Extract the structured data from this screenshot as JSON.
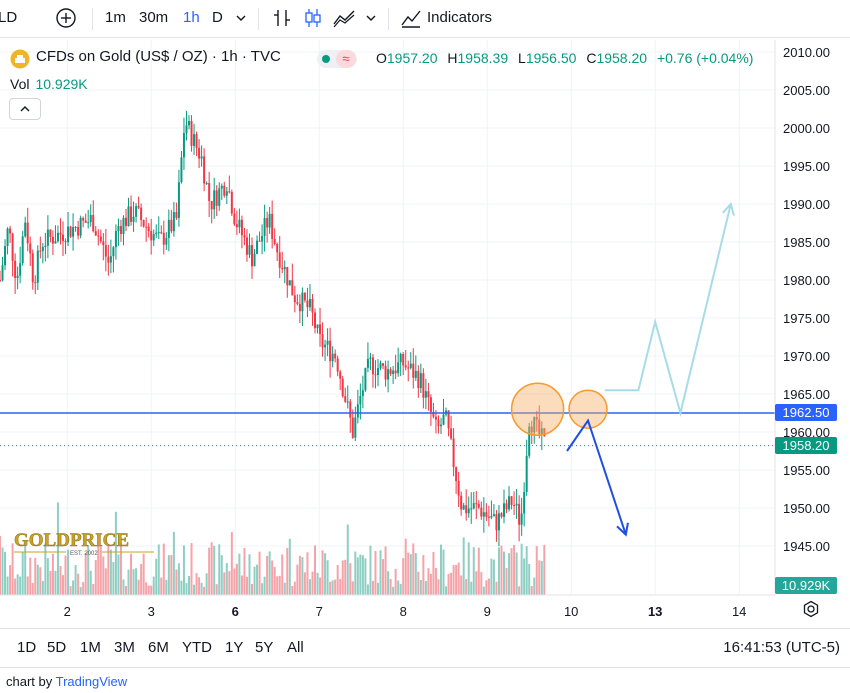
{
  "toolbar": {
    "symbol_fragment": "LD",
    "intervals": [
      "1m",
      "30m",
      "1h",
      "D"
    ],
    "active_interval": "1h",
    "indicators_label": "Indicators"
  },
  "header": {
    "title": "CFDs on Gold (US$ / OZ) · 1h · TVC",
    "ohlc": {
      "o_label": "O",
      "o": "1957.20",
      "h_label": "H",
      "h": "1958.39",
      "l_label": "L",
      "l": "1956.50",
      "c_label": "C",
      "c": "1958.20",
      "change": "+0.76 (+0.04%)"
    },
    "vol_label": "Vol",
    "vol_value": "10.929K"
  },
  "price_tags": {
    "line": "1962.50",
    "last": "1958.20",
    "volume": "10.929K"
  },
  "ranges": [
    "1D",
    "5D",
    "1M",
    "3M",
    "6M",
    "YTD",
    "1Y",
    "5Y",
    "All"
  ],
  "clock": "16:41:53 (UTC-5)",
  "footer": {
    "prefix": "chart by ",
    "brand": "TradingView"
  },
  "logo_text": "GOLDPRICE",
  "logo_sub": "EST. 2002",
  "colors": {
    "up": "#089981",
    "down": "#f23645",
    "vol_up": "#8fcfc3",
    "vol_down": "#f5a3a8",
    "line": "#2962ff",
    "annot_up": "#a8dbe8",
    "annot_down": "#1f4fe0",
    "circle": "#f7b26b"
  },
  "chart_data": {
    "type": "candlestick",
    "y_ticks": [
      1945,
      1950,
      1955,
      1960,
      1965,
      1970,
      1975,
      1980,
      1985,
      1990,
      1995,
      2000,
      2005,
      2010
    ],
    "ylim": [
      1941.5,
      2011.5
    ],
    "x_ticks": [
      {
        "label": "2",
        "x": 8,
        "bold": false
      },
      {
        "label": "3",
        "x": 18,
        "bold": false
      },
      {
        "label": "6",
        "x": 28,
        "bold": true
      },
      {
        "label": "7",
        "x": 38,
        "bold": false
      },
      {
        "label": "8",
        "x": 48,
        "bold": false
      },
      {
        "label": "9",
        "x": 58,
        "bold": false
      },
      {
        "label": "10",
        "x": 68,
        "bold": false
      },
      {
        "label": "13",
        "x": 78,
        "bold": true
      },
      {
        "label": "14",
        "x": 88,
        "bold": false
      }
    ],
    "xlim": [
      -1,
      91
    ],
    "horizontal_line": 1962.5,
    "last_price": 1958.2,
    "keypoints": [
      [
        0,
        1980
      ],
      [
        1,
        1987
      ],
      [
        2,
        1980
      ],
      [
        3,
        1988
      ],
      [
        4,
        1980
      ],
      [
        5,
        1985
      ],
      [
        7,
        1986
      ],
      [
        9,
        1987
      ],
      [
        11,
        1988
      ],
      [
        13,
        1982
      ],
      [
        14,
        1987
      ],
      [
        16,
        1989
      ],
      [
        19,
        1985
      ],
      [
        21,
        1988
      ],
      [
        22,
        2001
      ],
      [
        24,
        1996
      ],
      [
        25,
        1990
      ],
      [
        27,
        1993
      ],
      [
        28,
        1988
      ],
      [
        30,
        1983
      ],
      [
        32,
        1988
      ],
      [
        33,
        1984
      ],
      [
        35,
        1978
      ],
      [
        37,
        1976
      ],
      [
        38,
        1972
      ],
      [
        40,
        1970
      ],
      [
        42,
        1960
      ],
      [
        43,
        1965
      ],
      [
        44,
        1969
      ],
      [
        46,
        1968
      ],
      [
        48,
        1969
      ],
      [
        50,
        1967
      ],
      [
        52,
        1960
      ],
      [
        53,
        1962
      ],
      [
        54,
        1956
      ],
      [
        55,
        1950
      ],
      [
        57,
        1950
      ],
      [
        59,
        1948
      ],
      [
        61,
        1951
      ],
      [
        62,
        1948
      ],
      [
        63,
        1962
      ],
      [
        64,
        1960
      ],
      [
        65,
        1958
      ]
    ],
    "volume_max": 10,
    "annotation_paths": [
      {
        "color": "annot_up",
        "points": [
          [
            72,
            1965.5
          ],
          [
            76,
            1965.5
          ],
          [
            78,
            1974.5
          ],
          [
            81,
            1962.5
          ],
          [
            87,
            1990
          ]
        ]
      },
      {
        "color": "annot_down",
        "points": [
          [
            67.5,
            1957.5
          ],
          [
            70,
            1961.5
          ],
          [
            74.5,
            1946.5
          ]
        ]
      }
    ],
    "annotation_circles": [
      {
        "x": 64,
        "y": 1963,
        "r": 26
      },
      {
        "x": 70,
        "y": 1963,
        "r": 19
      }
    ]
  }
}
